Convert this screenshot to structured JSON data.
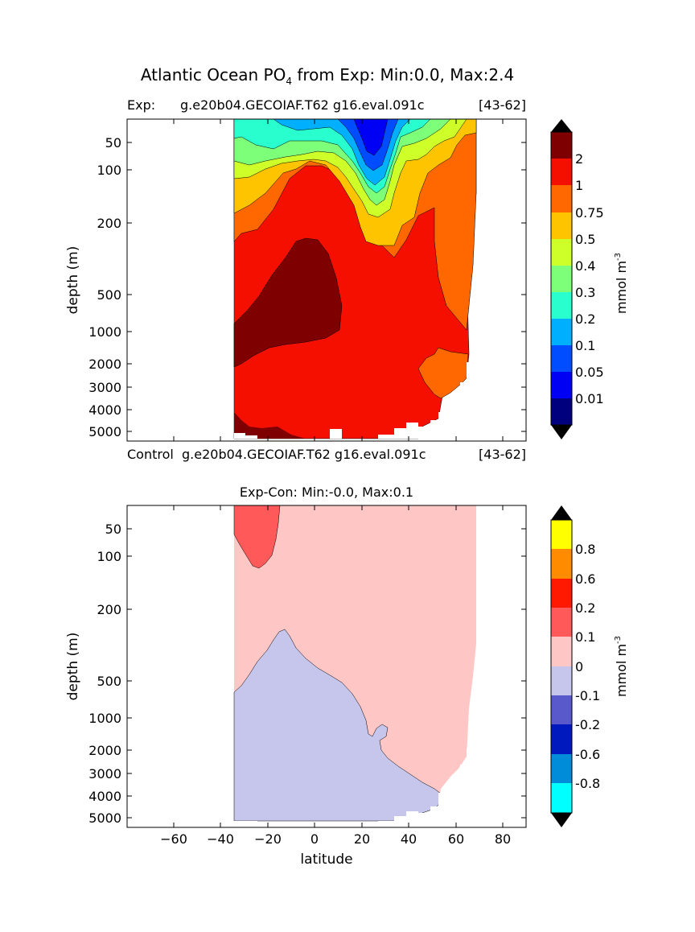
{
  "figure": {
    "title_main": "Atlantic Ocean PO",
    "title_sub": "4",
    "title_rest": " from Exp: Min:0.0, Max:2.4"
  },
  "top_panel": {
    "label_left": "Exp:",
    "label_center": "g.e20b04.GECOIAF.T62 g16.eval.091c",
    "label_right": "[43-62]",
    "ylabel": "depth (m)"
  },
  "between_panels": {
    "label_left": "Control",
    "label_center": "g.e20b04.GECOIAF.T62 g16.eval.091c",
    "label_right": "[43-62]"
  },
  "bottom_panel": {
    "title": "Exp-Con: Min:-0.0, Max:0.1",
    "ylabel": "depth (m)",
    "xlabel": "latitude"
  },
  "colorbars": {
    "unit_main": "mmol m",
    "unit_sup": "-3"
  },
  "chart_data": [
    {
      "type": "heatmap",
      "subtype": "filled-contour",
      "title": "Atlantic Ocean PO4 from Exp: Min:0.0, Max:2.4",
      "xlabel": "",
      "ylabel": "depth (m)",
      "xlim": [
        -80,
        90
      ],
      "yscale": "nonlinear-depth",
      "ylim": [
        5500,
        0
      ],
      "ytick_labels": [
        "50",
        "100",
        "200",
        "500",
        "1000",
        "2000",
        "3000",
        "4000",
        "5000"
      ],
      "ytick_values": [
        50,
        100,
        200,
        500,
        1000,
        2000,
        3000,
        4000,
        5000
      ],
      "colorbar": {
        "levels": [
          0.0,
          0.01,
          0.05,
          0.1,
          0.2,
          0.3,
          0.4,
          0.5,
          0.75,
          1,
          2
        ],
        "tick_labels": [
          "0.01",
          "0.05",
          "0.1",
          "0.2",
          "0.3",
          "0.4",
          "0.5",
          "0.75",
          "1",
          "2"
        ],
        "colors": [
          "#00007f",
          "#0000f5",
          "#004cff",
          "#00b0ff",
          "#29ffce",
          "#7dff7a",
          "#ceff29",
          "#ffc400",
          "#ff6800",
          "#f50f00",
          "#7f0000"
        ],
        "extend": "both",
        "label": "mmol m-3"
      },
      "regions": [
        {
          "range": [
            2,
            2.4
          ],
          "color": "#7f0000",
          "location": "lat -34 to -5, depth 250-1500 m (and bottom >4500 m)"
        },
        {
          "range": [
            1,
            2
          ],
          "color": "#f50f00",
          "location": "deep ocean, lat -34 to 58"
        },
        {
          "range": [
            0.75,
            1
          ],
          "color": "#ff6800",
          "location": "upper 200 m south, 1500-4000 m north of 45N"
        },
        {
          "range": [
            0.5,
            0.75
          ],
          "color": "#ffc400",
          "location": "upper ocean 100-300 m"
        },
        {
          "range": [
            0.01,
            0.05
          ],
          "color": "#0000f5",
          "location": "surface subtropical gyre near 25N"
        }
      ]
    },
    {
      "type": "heatmap",
      "subtype": "filled-contour",
      "title": "Exp-Con: Min:-0.0, Max:0.1",
      "xlabel": "latitude",
      "ylabel": "depth (m)",
      "xlim": [
        -80,
        90
      ],
      "xtick_labels": [
        "−60",
        "−40",
        "−20",
        "0",
        "20",
        "40",
        "60",
        "80"
      ],
      "xtick_values": [
        -60,
        -40,
        -20,
        0,
        20,
        40,
        60,
        80
      ],
      "ytick_labels": [
        "50",
        "100",
        "200",
        "500",
        "1000",
        "2000",
        "3000",
        "4000",
        "5000"
      ],
      "ytick_values": [
        50,
        100,
        200,
        500,
        1000,
        2000,
        3000,
        4000,
        5000
      ],
      "colorbar": {
        "levels": [
          -1.0,
          -0.8,
          -0.6,
          -0.2,
          -0.1,
          0,
          0.1,
          0.2,
          0.6,
          0.8,
          1.0
        ],
        "tick_labels": [
          "-0.8",
          "-0.6",
          "-0.2",
          "-0.1",
          "0",
          "0.1",
          "0.2",
          "0.6",
          "0.8"
        ],
        "colors": [
          "#00ffff",
          "#008cd9",
          "#0019bf",
          "#5959cc",
          "#c6c6ed",
          "#ffc6c6",
          "#ff5959",
          "#ff1900",
          "#ff8c00",
          "#ffff00"
        ],
        "extend": "both",
        "label": "mmol m-3"
      },
      "regions": [
        {
          "range": [
            0.1,
            0.2
          ],
          "color": "#ff5959",
          "location": "lat -34 to -18, surface to 120 m"
        },
        {
          "range": [
            0,
            0.1
          ],
          "color": "#ffc6c6",
          "location": "upper ocean and northern basin"
        },
        {
          "range": [
            -0.1,
            0
          ],
          "color": "#c6c6ed",
          "location": "deep southern ocean below ~300-3500 m"
        }
      ]
    }
  ]
}
